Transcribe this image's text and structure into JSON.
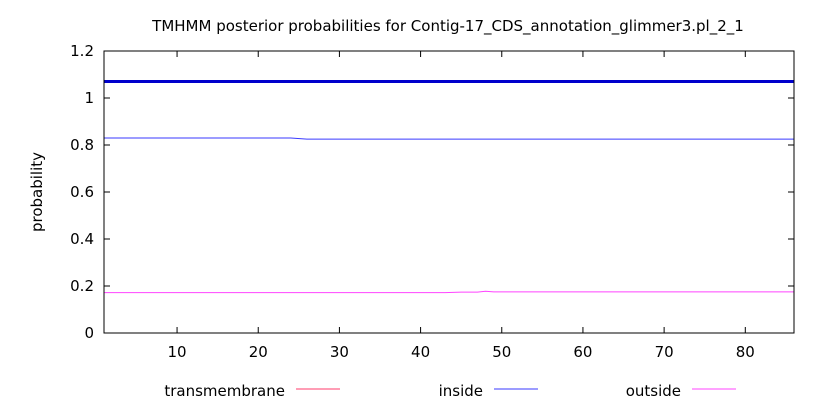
{
  "chart_data": {
    "type": "line",
    "title": "TMHMM posterior probabilities for Contig-17_CDS_annotation_glimmer3.pl_2_1",
    "xlabel": "",
    "ylabel": "probability",
    "xlim": [
      1,
      86
    ],
    "ylim": [
      0,
      1.2
    ],
    "x_ticks": [
      10,
      20,
      30,
      40,
      50,
      60,
      70,
      80
    ],
    "y_ticks": [
      0,
      0.2,
      0.4,
      0.6,
      0.8,
      1,
      1.2
    ],
    "x_tick_labels": [
      "10",
      "20",
      "30",
      "40",
      "50",
      "60",
      "70",
      "80"
    ],
    "y_tick_labels": [
      "0",
      "0.2",
      "0.4",
      "0.6",
      "0.8",
      "1",
      "1.2"
    ],
    "grid": false,
    "legend_position": "bottom",
    "series": [
      {
        "name": "transmembrane",
        "color": "#ff3b6b",
        "x": [
          1,
          86
        ],
        "values": [
          0,
          0
        ]
      },
      {
        "name": "inside",
        "color": "#3a3aff",
        "x": [
          1,
          24,
          26,
          86
        ],
        "values": [
          0.83,
          0.83,
          0.825,
          0.825
        ]
      },
      {
        "name": "outside",
        "color": "#ff44ff",
        "x": [
          1,
          43,
          45,
          47,
          48,
          49,
          86
        ],
        "values": [
          0.172,
          0.172,
          0.174,
          0.174,
          0.178,
          0.175,
          0.175
        ]
      }
    ],
    "annotations": [
      {
        "type": "hline",
        "name": "inside-band",
        "color": "#0000cc",
        "y": 1.07
      }
    ]
  }
}
